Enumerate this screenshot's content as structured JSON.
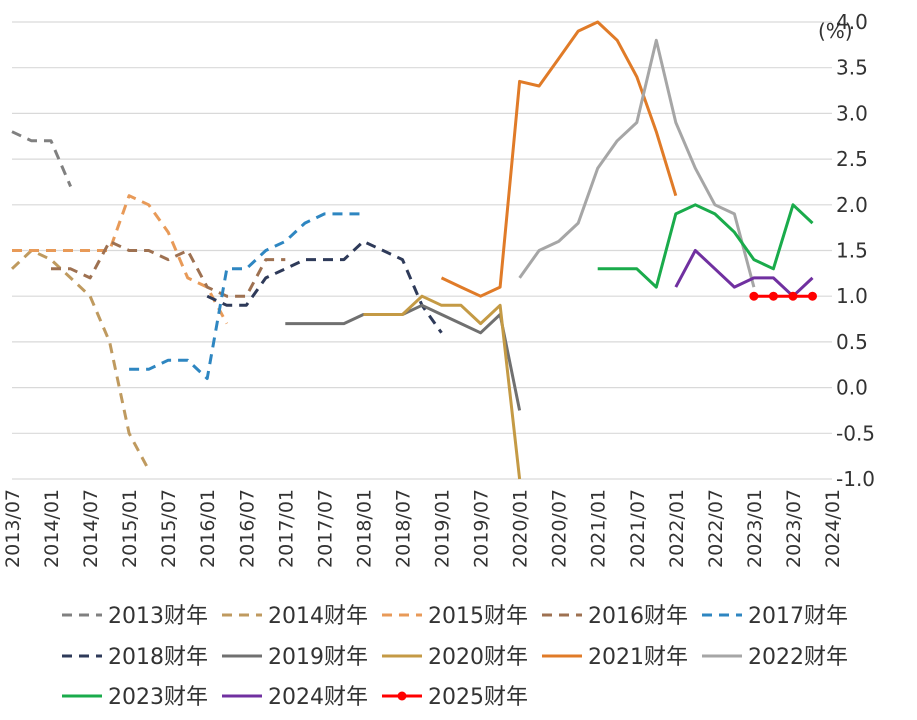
{
  "chart_data": {
    "type": "line",
    "unit_label": "(%)",
    "ylim": [
      -1.0,
      4.0
    ],
    "y_ticks": [
      "4.0",
      "3.5",
      "3.0",
      "2.5",
      "2.0",
      "1.5",
      "1.0",
      "0.5",
      "0.0",
      "-0.5",
      "-1.0"
    ],
    "x_ticks": [
      "2013/07",
      "2014/01",
      "2014/07",
      "2015/01",
      "2015/07",
      "2016/01",
      "2016/07",
      "2017/01",
      "2017/07",
      "2018/01",
      "2018/07",
      "2019/01",
      "2019/07",
      "2020/01",
      "2020/07",
      "2021/01",
      "2021/07",
      "2022/01",
      "2022/07",
      "2023/01",
      "2023/07",
      "2024/01"
    ],
    "grid": "horizontal",
    "legend_position": "bottom",
    "series": [
      {
        "name": "2013财年",
        "color": "#808080",
        "dash": "dashed",
        "points": [
          [
            "2013/07",
            2.8
          ],
          [
            "2013/10",
            2.7
          ],
          [
            "2014/01",
            2.7
          ],
          [
            "2014/04",
            2.2
          ]
        ]
      },
      {
        "name": "2014财年",
        "color": "#BF9A5F",
        "dash": "dashed",
        "points": [
          [
            "2013/07",
            1.3
          ],
          [
            "2013/10",
            1.5
          ],
          [
            "2014/01",
            1.4
          ],
          [
            "2014/04",
            1.2
          ],
          [
            "2014/07",
            1.0
          ],
          [
            "2014/10",
            0.5
          ],
          [
            "2015/01",
            -0.5
          ],
          [
            "2015/04",
            -0.9
          ]
        ]
      },
      {
        "name": "2015财年",
        "color": "#E89A58",
        "dash": "dashed",
        "points": [
          [
            "2013/07",
            1.5
          ],
          [
            "2013/10",
            1.5
          ],
          [
            "2014/01",
            1.5
          ],
          [
            "2014/04",
            1.5
          ],
          [
            "2014/07",
            1.5
          ],
          [
            "2014/10",
            1.5
          ],
          [
            "2015/01",
            2.1
          ],
          [
            "2015/04",
            2.0
          ],
          [
            "2015/07",
            1.7
          ],
          [
            "2015/10",
            1.2
          ],
          [
            "2016/01",
            1.1
          ],
          [
            "2016/04",
            0.7
          ]
        ]
      },
      {
        "name": "2016财年",
        "color": "#9E7151",
        "dash": "dashed",
        "points": [
          [
            "2014/01",
            1.3
          ],
          [
            "2014/04",
            1.3
          ],
          [
            "2014/07",
            1.2
          ],
          [
            "2014/10",
            1.6
          ],
          [
            "2015/01",
            1.5
          ],
          [
            "2015/04",
            1.5
          ],
          [
            "2015/07",
            1.4
          ],
          [
            "2015/10",
            1.5
          ],
          [
            "2016/01",
            1.1
          ],
          [
            "2016/04",
            1.0
          ],
          [
            "2016/07",
            1.0
          ],
          [
            "2016/10",
            1.4
          ],
          [
            "2017/01",
            1.4
          ]
        ]
      },
      {
        "name": "2017财年",
        "color": "#2E86C1",
        "dash": "dashed",
        "points": [
          [
            "2015/01",
            0.2
          ],
          [
            "2015/04",
            0.2
          ],
          [
            "2015/07",
            0.3
          ],
          [
            "2015/10",
            0.3
          ],
          [
            "2016/01",
            0.1
          ],
          [
            "2016/04",
            1.3
          ],
          [
            "2016/07",
            1.3
          ],
          [
            "2016/10",
            1.5
          ],
          [
            "2017/01",
            1.6
          ],
          [
            "2017/04",
            1.8
          ],
          [
            "2017/07",
            1.9
          ],
          [
            "2017/10",
            1.9
          ],
          [
            "2018/01",
            1.9
          ]
        ]
      },
      {
        "name": "2018财年",
        "color": "#2E3A59",
        "dash": "dashed",
        "points": [
          [
            "2016/01",
            1.0
          ],
          [
            "2016/04",
            0.9
          ],
          [
            "2016/07",
            0.9
          ],
          [
            "2016/10",
            1.2
          ],
          [
            "2017/01",
            1.3
          ],
          [
            "2017/04",
            1.4
          ],
          [
            "2017/07",
            1.4
          ],
          [
            "2017/10",
            1.4
          ],
          [
            "2018/01",
            1.6
          ],
          [
            "2018/04",
            1.5
          ],
          [
            "2018/07",
            1.4
          ],
          [
            "2018/10",
            0.9
          ],
          [
            "2019/01",
            0.6
          ]
        ]
      },
      {
        "name": "2019财年",
        "color": "#707070",
        "dash": "solid",
        "points": [
          [
            "2017/01",
            0.7
          ],
          [
            "2017/04",
            0.7
          ],
          [
            "2017/07",
            0.7
          ],
          [
            "2017/10",
            0.7
          ],
          [
            "2018/01",
            0.8
          ],
          [
            "2018/04",
            0.8
          ],
          [
            "2018/07",
            0.8
          ],
          [
            "2018/10",
            0.9
          ],
          [
            "2019/01",
            0.8
          ],
          [
            "2019/04",
            0.7
          ],
          [
            "2019/07",
            0.6
          ],
          [
            "2019/10",
            0.8
          ],
          [
            "2020/01",
            -0.25
          ]
        ]
      },
      {
        "name": "2020财年",
        "color": "#C49A45",
        "dash": "solid",
        "points": [
          [
            "2018/01",
            0.8
          ],
          [
            "2018/04",
            0.8
          ],
          [
            "2018/07",
            0.8
          ],
          [
            "2018/10",
            1.0
          ],
          [
            "2019/01",
            0.9
          ],
          [
            "2019/04",
            0.9
          ],
          [
            "2019/07",
            0.7
          ],
          [
            "2019/10",
            0.9
          ],
          [
            "2020/01",
            -1.0
          ]
        ]
      },
      {
        "name": "2021财年",
        "color": "#E07B28",
        "dash": "solid",
        "points": [
          [
            "2019/01",
            1.2
          ],
          [
            "2019/04",
            1.1
          ],
          [
            "2019/07",
            1.0
          ],
          [
            "2019/10",
            1.1
          ],
          [
            "2020/01",
            3.35
          ],
          [
            "2020/04",
            3.3
          ],
          [
            "2020/07",
            3.6
          ],
          [
            "2020/10",
            3.9
          ],
          [
            "2021/01",
            4.0
          ],
          [
            "2021/04",
            3.8
          ],
          [
            "2021/07",
            3.4
          ],
          [
            "2021/10",
            2.8
          ],
          [
            "2022/01",
            2.1
          ]
        ]
      },
      {
        "name": "2022财年",
        "color": "#A6A6A6",
        "dash": "solid",
        "points": [
          [
            "2020/01",
            1.2
          ],
          [
            "2020/04",
            1.5
          ],
          [
            "2020/07",
            1.6
          ],
          [
            "2020/10",
            1.8
          ],
          [
            "2021/01",
            2.4
          ],
          [
            "2021/04",
            2.7
          ],
          [
            "2021/07",
            2.9
          ],
          [
            "2021/10",
            3.8
          ],
          [
            "2022/01",
            2.9
          ],
          [
            "2022/04",
            2.4
          ],
          [
            "2022/07",
            2.0
          ],
          [
            "2022/10",
            1.9
          ],
          [
            "2023/01",
            1.1
          ]
        ]
      },
      {
        "name": "2023财年",
        "color": "#1AAB4B",
        "dash": "solid",
        "points": [
          [
            "2021/01",
            1.3
          ],
          [
            "2021/04",
            1.3
          ],
          [
            "2021/07",
            1.3
          ],
          [
            "2021/10",
            1.1
          ],
          [
            "2022/01",
            1.9
          ],
          [
            "2022/04",
            2.0
          ],
          [
            "2022/07",
            1.9
          ],
          [
            "2022/10",
            1.7
          ],
          [
            "2023/01",
            1.4
          ],
          [
            "2023/04",
            1.3
          ],
          [
            "2023/07",
            2.0
          ],
          [
            "2023/10",
            1.8
          ]
        ]
      },
      {
        "name": "2024财年",
        "color": "#7030A0",
        "dash": "solid",
        "points": [
          [
            "2022/01",
            1.1
          ],
          [
            "2022/04",
            1.5
          ],
          [
            "2022/07",
            1.3
          ],
          [
            "2022/10",
            1.1
          ],
          [
            "2023/01",
            1.2
          ],
          [
            "2023/04",
            1.2
          ],
          [
            "2023/07",
            1.0
          ],
          [
            "2023/10",
            1.2
          ]
        ]
      },
      {
        "name": "2025财年",
        "color": "#FF0000",
        "dash": "marker",
        "points": [
          [
            "2023/01",
            1.0
          ],
          [
            "2023/04",
            1.0
          ],
          [
            "2023/07",
            1.0
          ],
          [
            "2023/10",
            1.0
          ]
        ]
      }
    ]
  }
}
